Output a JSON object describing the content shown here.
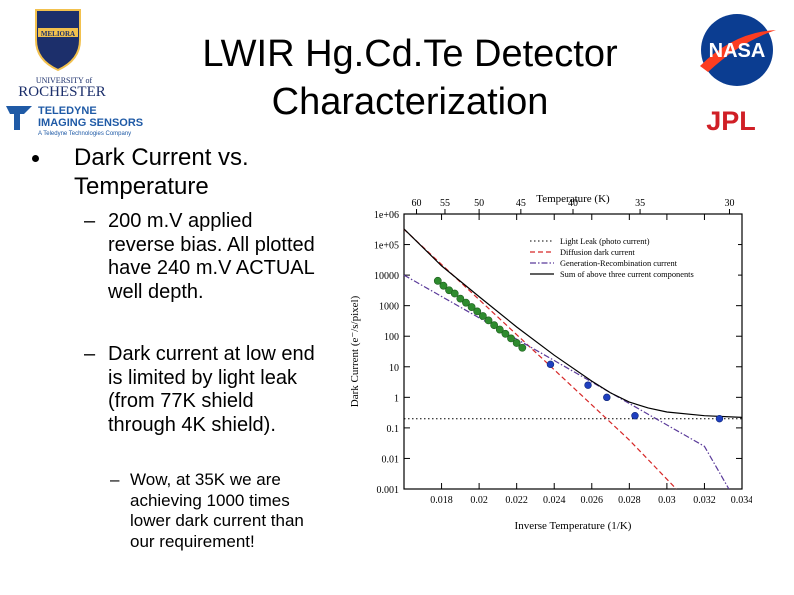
{
  "slide": {
    "title": "LWIR Hg.Cd.Te Detector Characterization",
    "bullets": [
      {
        "text": "Dark Current vs. Temperature"
      },
      {
        "text": "200 m.V applied reverse bias. All plotted have 240 m.V ACTUAL well depth."
      },
      {
        "text": "Dark current at low end is limited by light leak (from 77K shield through 4K shield)."
      },
      {
        "text": "Wow, at 35K we are achieving 1000 times lower dark current than our requirement!"
      }
    ]
  },
  "logos": {
    "ur_motto": "MELIORA",
    "ur_line1": "UNIVERSITY of",
    "ur_line2": "ROCHESTER",
    "teledyne_line1": "TELEDYNE",
    "teledyne_line2": "IMAGING SENSORS",
    "teledyne_line3": "A Teledyne Technologies Company",
    "nasa": "NASA",
    "jpl": "JPL"
  },
  "colors": {
    "light_leak": "#000000",
    "diffusion": "#d62828",
    "gr": "#5a3a9a",
    "sum": "#000000",
    "measured_green": "#2e8b2e",
    "measured_blue": "#1f3fbf",
    "nasa_blue": "#0b3d91",
    "nasa_red": "#fc3d21",
    "jpl_red": "#d01f26",
    "ur_blue": "#1c2f6b",
    "ur_gold": "#f2c14e",
    "teledyne_blue": "#1f5aa6"
  },
  "chart_data": {
    "type": "scatter",
    "xlabel": "Inverse Temperature (1/K)",
    "ylabel": "Dark Current (e⁻/s/pixel)",
    "top_label": "Temperature (K)",
    "xlim": [
      0.016,
      0.034
    ],
    "ylim_log10": [
      -3,
      6
    ],
    "y_scale": "log",
    "x_ticks": [
      "0.018",
      "0.02",
      "0.022",
      "0.024",
      "0.026",
      "0.028",
      "0.03",
      "0.032",
      "0.034"
    ],
    "x_tick_values": [
      0.018,
      0.02,
      0.022,
      0.024,
      0.026,
      0.028,
      0.03,
      0.032,
      0.034
    ],
    "y_ticks": [
      "0.001",
      "0.01",
      "0.1",
      "1",
      "10",
      "100",
      "1000",
      "10000",
      "1e+05",
      "1e+06"
    ],
    "y_tick_values": [
      0.001,
      0.01,
      0.1,
      1,
      10,
      100,
      1000,
      10000,
      100000,
      1000000
    ],
    "top_ticks": [
      "60",
      "55",
      "50",
      "45",
      "40",
      "35",
      "30"
    ],
    "top_tick_values": [
      60,
      55,
      50,
      45,
      40,
      35,
      30
    ],
    "legend_position": "top-right",
    "legend": [
      "Light Leak (photo current)",
      "Diffusion dark current",
      "Generation-Recombination current",
      "Sum of above three current components"
    ],
    "series": [
      {
        "name": "Light Leak (photo current)",
        "style": "dotted",
        "x": [
          0.016,
          0.034
        ],
        "y": [
          0.2,
          0.2
        ]
      },
      {
        "name": "Diffusion dark current",
        "style": "dashed",
        "x": [
          0.016,
          0.02,
          0.024,
          0.028,
          0.0305
        ],
        "y": [
          316000,
          1580,
          8,
          0.04,
          0.001
        ]
      },
      {
        "name": "Generation-Recombination current",
        "style": "dashdot",
        "x": [
          0.016,
          0.02,
          0.024,
          0.028,
          0.032,
          0.0333
        ],
        "y": [
          10000,
          400,
          16,
          0.63,
          0.025,
          0.001
        ]
      },
      {
        "name": "Sum of above three current components",
        "style": "solid",
        "x": [
          0.016,
          0.018,
          0.02,
          0.022,
          0.024,
          0.026,
          0.027,
          0.028,
          0.029,
          0.03,
          0.032,
          0.034
        ],
        "y": [
          326000,
          20000,
          1980,
          200,
          24,
          3.4,
          1.4,
          0.7,
          0.45,
          0.33,
          0.25,
          0.22
        ]
      }
    ],
    "points": [
      {
        "group": "green",
        "x": [
          0.0178,
          0.0181,
          0.0184,
          0.0187,
          0.019,
          0.0193,
          0.0196,
          0.0199,
          0.0202,
          0.0205,
          0.0208,
          0.0211,
          0.0214,
          0.0217,
          0.022,
          0.0223
        ],
        "y": [
          6500,
          4500,
          3200,
          2500,
          1700,
          1250,
          900,
          650,
          460,
          330,
          230,
          165,
          120,
          85,
          60,
          42
        ]
      },
      {
        "group": "blue",
        "x": [
          0.0238,
          0.0258,
          0.0268,
          0.0283,
          0.0328
        ],
        "y": [
          12,
          2.5,
          1,
          0.25,
          0.2
        ]
      }
    ]
  }
}
